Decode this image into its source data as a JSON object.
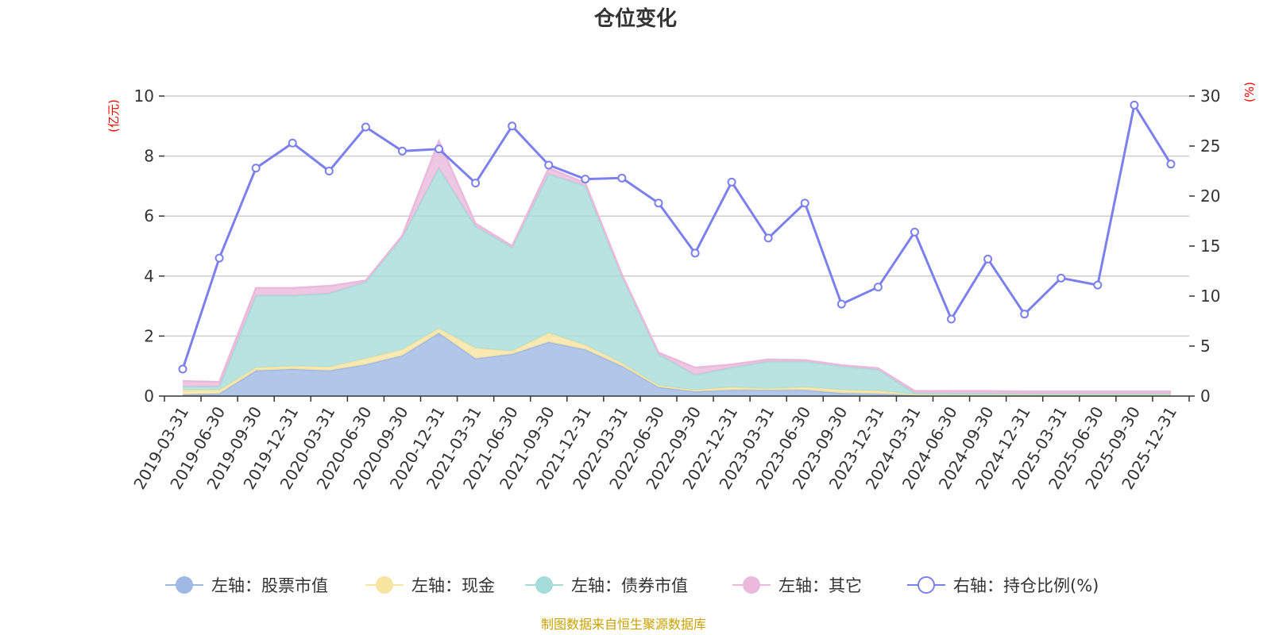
{
  "chart_data": {
    "type": "area",
    "title": "仓位变化",
    "left_axis_unit": "(亿元)",
    "right_axis_unit": "(%)",
    "left_ylim": [
      0,
      10
    ],
    "left_ticks": [
      0,
      2,
      4,
      6,
      8,
      10
    ],
    "right_ylim": [
      0,
      30
    ],
    "right_ticks": [
      0,
      5,
      10,
      15,
      20,
      25,
      30
    ],
    "categories": [
      "2019-03-31",
      "2019-06-30",
      "2019-09-30",
      "2019-12-31",
      "2020-03-31",
      "2020-06-30",
      "2020-09-30",
      "2020-12-31",
      "2021-03-31",
      "2021-06-30",
      "2021-09-30",
      "2021-12-31",
      "2022-03-31",
      "2022-06-30",
      "2022-09-30",
      "2022-12-31",
      "2023-03-31",
      "2023-06-30",
      "2023-09-30",
      "2023-12-31",
      "2024-03-31",
      "2024-06-30",
      "2024-09-30",
      "2024-12-31",
      "2025-03-31",
      "2025-06-30",
      "2025-09-30",
      "2025-12-31"
    ],
    "series": [
      {
        "name": "左轴：股票市值",
        "axis": "left",
        "kind": "stacked-area",
        "color": "#9fb8e3",
        "values": [
          0.05,
          0.08,
          0.85,
          0.9,
          0.85,
          1.05,
          1.35,
          2.1,
          1.25,
          1.4,
          1.8,
          1.55,
          1.0,
          0.3,
          0.15,
          0.2,
          0.2,
          0.2,
          0.1,
          0.08,
          0.03,
          0.02,
          0.02,
          0.02,
          0.02,
          0.02,
          0.02,
          0.02
        ]
      },
      {
        "name": "左轴：现金",
        "axis": "left",
        "kind": "stacked-area",
        "color": "#f7e4a0",
        "values": [
          0.15,
          0.12,
          0.1,
          0.1,
          0.12,
          0.2,
          0.2,
          0.15,
          0.35,
          0.1,
          0.3,
          0.15,
          0.1,
          0.05,
          0.05,
          0.1,
          0.05,
          0.1,
          0.1,
          0.1,
          0.02,
          0.02,
          0.02,
          0.02,
          0.02,
          0.02,
          0.02,
          0.02
        ]
      },
      {
        "name": "左轴：债券市值",
        "axis": "left",
        "kind": "stacked-area",
        "color": "#a6dcd9",
        "values": [
          0.12,
          0.12,
          2.4,
          2.35,
          2.45,
          2.55,
          3.75,
          5.35,
          4.05,
          3.45,
          5.3,
          5.3,
          2.9,
          1.05,
          0.5,
          0.65,
          0.9,
          0.85,
          0.8,
          0.7,
          0.05,
          0.05,
          0.05,
          0.04,
          0.04,
          0.04,
          0.04,
          0.04
        ]
      },
      {
        "name": "左轴：其它",
        "axis": "left",
        "kind": "stacked-area",
        "color": "#eab9db",
        "values": [
          0.18,
          0.15,
          0.25,
          0.25,
          0.25,
          0.05,
          0.05,
          0.9,
          0.1,
          0.05,
          0.2,
          0.1,
          0.05,
          0.05,
          0.25,
          0.1,
          0.07,
          0.05,
          0.03,
          0.05,
          0.07,
          0.08,
          0.08,
          0.07,
          0.07,
          0.07,
          0.07,
          0.07
        ]
      },
      {
        "name": "右轴：持仓比例(%)",
        "axis": "right",
        "kind": "line",
        "color": "#7b80ee",
        "values": [
          2.7,
          13.8,
          22.8,
          25.3,
          22.5,
          26.9,
          24.5,
          24.7,
          21.3,
          27.0,
          23.1,
          21.7,
          21.8,
          19.3,
          14.3,
          21.4,
          15.8,
          19.3,
          9.2,
          10.9,
          16.4,
          7.7,
          13.7,
          8.2,
          11.8,
          11.1,
          29.1,
          23.2
        ]
      }
    ]
  },
  "legend": [
    {
      "label": "左轴：股票市值",
      "color": "#9fb8e3",
      "marker": "filled-circle"
    },
    {
      "label": "左轴：现金",
      "color": "#f7e4a0",
      "marker": "filled-circle"
    },
    {
      "label": "左轴：债券市值",
      "color": "#a6dcd9",
      "marker": "filled-circle"
    },
    {
      "label": "左轴：其它",
      "color": "#eab9db",
      "marker": "filled-circle"
    },
    {
      "label": "右轴：持仓比例(%)",
      "color": "#7b80ee",
      "marker": "hollow-circle"
    }
  ],
  "source_note": "制图数据来自恒生聚源数据库",
  "colors": {
    "axis_unit": "#ff0000",
    "source_note": "#c9a100",
    "grid": "#cccccc",
    "text": "#333333"
  }
}
